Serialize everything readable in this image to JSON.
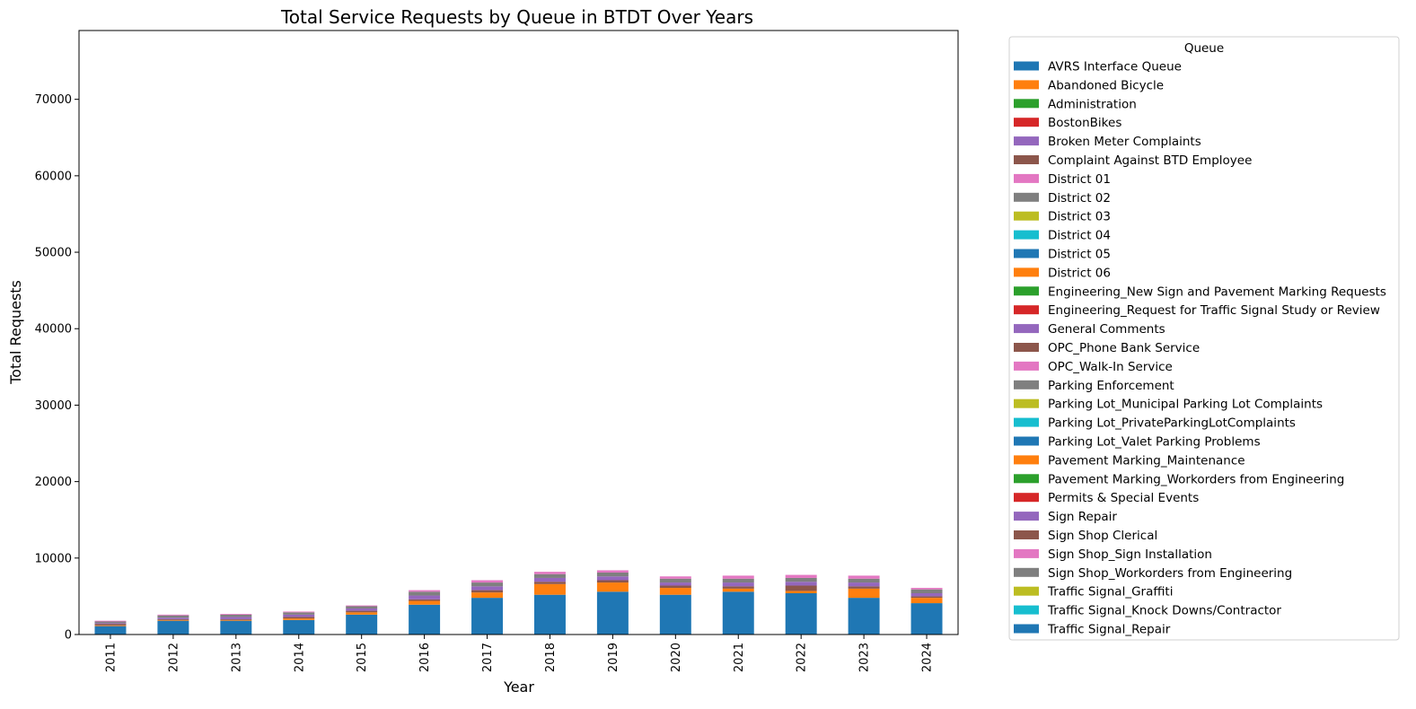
{
  "chart_data": {
    "type": "bar",
    "stacked": true,
    "title": "Total Service Requests by Queue in BTDT Over Years",
    "xlabel": "Year",
    "ylabel": "Total Requests",
    "ylim": [
      0,
      79000
    ],
    "yticks": [
      0,
      10000,
      20000,
      30000,
      40000,
      50000,
      60000,
      70000
    ],
    "legend_title": "Queue",
    "legend_position": "outside-right",
    "categories": [
      "2011",
      "2012",
      "2013",
      "2014",
      "2015",
      "2016",
      "2017",
      "2018",
      "2019",
      "2020",
      "2021",
      "2022",
      "2023",
      "2024"
    ],
    "series": [
      {
        "name": "Traffic Signal_Repair",
        "color": "#1f77b4",
        "values": [
          1100,
          1800,
          1800,
          1900,
          2600,
          3900,
          4800,
          5200,
          5600,
          5200,
          5600,
          5400,
          4800,
          4100
        ]
      },
      {
        "name": "Traffic Signal_Knock Downs/Contractor",
        "color": "#17becf",
        "values": [
          0,
          0,
          0,
          0,
          0,
          0,
          0,
          0,
          0,
          0,
          0,
          0,
          0,
          0
        ]
      },
      {
        "name": "Traffic Signal_Graffiti",
        "color": "#bcbd22",
        "values": [
          0,
          0,
          0,
          0,
          0,
          0,
          0,
          0,
          0,
          0,
          0,
          0,
          0,
          0
        ]
      },
      {
        "name": "Sign Shop_Workorders from Engineering",
        "color": "#7f7f7f",
        "values": [
          0,
          0,
          0,
          0,
          0,
          0,
          0,
          0,
          0,
          0,
          0,
          0,
          0,
          0
        ]
      },
      {
        "name": "Sign Shop_Sign Installation",
        "color": "#e377c2",
        "values": [
          0,
          0,
          0,
          0,
          0,
          0,
          0,
          0,
          0,
          0,
          0,
          0,
          0,
          0
        ]
      },
      {
        "name": "Sign Shop Clerical",
        "color": "#8c564b",
        "values": [
          0,
          0,
          0,
          0,
          0,
          0,
          0,
          0,
          0,
          0,
          0,
          0,
          0,
          0
        ]
      },
      {
        "name": "Sign Repair",
        "color": "#9467bd",
        "values": [
          0,
          0,
          0,
          0,
          0,
          0,
          0,
          0,
          0,
          0,
          0,
          0,
          0,
          0
        ]
      },
      {
        "name": "Permits & Special Events",
        "color": "#d62728",
        "values": [
          0,
          0,
          0,
          0,
          0,
          0,
          0,
          0,
          0,
          0,
          0,
          0,
          0,
          0
        ]
      },
      {
        "name": "Pavement Marking_Workorders from Engineering",
        "color": "#2ca02c",
        "values": [
          0,
          0,
          0,
          0,
          0,
          0,
          0,
          0,
          0,
          0,
          0,
          0,
          0,
          0
        ]
      },
      {
        "name": "Pavement Marking_Maintenance",
        "color": "#ff7f0e",
        "values": [
          100,
          100,
          100,
          200,
          300,
          500,
          700,
          1400,
          1200,
          900,
          400,
          300,
          1200,
          700
        ]
      },
      {
        "name": "Parking Lot_Valet Parking Problems",
        "color": "#1f77b4",
        "values": [
          0,
          0,
          0,
          0,
          0,
          0,
          0,
          0,
          0,
          0,
          0,
          0,
          0,
          0
        ]
      },
      {
        "name": "Parking Lot_PrivateParkingLotComplaints",
        "color": "#17becf",
        "values": [
          0,
          0,
          0,
          0,
          0,
          0,
          0,
          0,
          0,
          0,
          0,
          0,
          0,
          0
        ]
      },
      {
        "name": "Parking Lot_Municipal Parking Lot Complaints",
        "color": "#bcbd22",
        "values": [
          0,
          0,
          0,
          0,
          0,
          0,
          0,
          0,
          0,
          0,
          0,
          0,
          0,
          0
        ]
      },
      {
        "name": "Parking Enforcement",
        "color": "#7f7f7f",
        "values": [
          0,
          0,
          0,
          0,
          0,
          0,
          0,
          0,
          0,
          0,
          0,
          0,
          0,
          0
        ]
      },
      {
        "name": "OPC_Walk-In Service",
        "color": "#e377c2",
        "values": [
          0,
          0,
          0,
          0,
          0,
          0,
          0,
          0,
          0,
          0,
          0,
          0,
          0,
          0
        ]
      },
      {
        "name": "OPC_Phone Bank Service",
        "color": "#8c564b",
        "values": [
          200,
          100,
          100,
          200,
          200,
          200,
          300,
          300,
          300,
          300,
          300,
          700,
          300,
          200
        ]
      },
      {
        "name": "General Comments",
        "color": "#9467bd",
        "values": [
          100,
          200,
          300,
          300,
          300,
          500,
          500,
          500,
          500,
          400,
          500,
          500,
          500,
          400
        ]
      },
      {
        "name": "Engineering_Request for Traffic Signal Study or Review",
        "color": "#d62728",
        "values": [
          0,
          0,
          0,
          0,
          0,
          0,
          0,
          0,
          0,
          0,
          0,
          0,
          0,
          0
        ]
      },
      {
        "name": "Engineering_New Sign and Pavement Marking Requests",
        "color": "#2ca02c",
        "values": [
          0,
          0,
          0,
          0,
          0,
          0,
          0,
          0,
          0,
          0,
          0,
          0,
          0,
          0
        ]
      },
      {
        "name": "District 06",
        "color": "#ff7f0e",
        "values": [
          0,
          0,
          0,
          0,
          0,
          0,
          0,
          0,
          0,
          0,
          0,
          0,
          0,
          0
        ]
      },
      {
        "name": "District 05",
        "color": "#1f77b4",
        "values": [
          0,
          0,
          0,
          0,
          0,
          0,
          0,
          0,
          0,
          0,
          0,
          0,
          0,
          0
        ]
      },
      {
        "name": "District 04",
        "color": "#17becf",
        "values": [
          0,
          0,
          0,
          0,
          0,
          0,
          0,
          0,
          0,
          0,
          0,
          0,
          0,
          0
        ]
      },
      {
        "name": "District 03",
        "color": "#bcbd22",
        "values": [
          0,
          0,
          0,
          0,
          0,
          0,
          0,
          0,
          0,
          0,
          0,
          0,
          0,
          0
        ]
      },
      {
        "name": "District 02",
        "color": "#7f7f7f",
        "values": [
          200,
          300,
          300,
          300,
          300,
          500,
          500,
          500,
          500,
          500,
          500,
          500,
          500,
          500
        ]
      },
      {
        "name": "District 01",
        "color": "#e377c2",
        "values": [
          100,
          100,
          100,
          100,
          100,
          200,
          300,
          300,
          300,
          300,
          400,
          400,
          400,
          200
        ]
      },
      {
        "name": "Complaint Against BTD Employee",
        "color": "#8c564b",
        "values": [
          0,
          0,
          0,
          0,
          0,
          0,
          0,
          0,
          0,
          0,
          0,
          0,
          0,
          0
        ]
      },
      {
        "name": "Broken Meter Complaints",
        "color": "#9467bd",
        "values": [
          0,
          0,
          0,
          0,
          0,
          0,
          0,
          0,
          0,
          0,
          0,
          0,
          0,
          0
        ]
      },
      {
        "name": "BostonBikes",
        "color": "#d62728",
        "values": [
          0,
          0,
          0,
          0,
          0,
          0,
          0,
          0,
          0,
          0,
          0,
          0,
          0,
          0
        ]
      },
      {
        "name": "Administration",
        "color": "#2ca02c",
        "values": [
          0,
          0,
          0,
          0,
          0,
          0,
          0,
          0,
          0,
          0,
          0,
          0,
          0,
          0
        ]
      },
      {
        "name": "Abandoned Bicycle",
        "color": "#ff7f0e",
        "values": [
          0,
          0,
          0,
          0,
          0,
          0,
          0,
          0,
          0,
          0,
          0,
          0,
          0,
          0
        ]
      },
      {
        "name": "AVRS Interface Queue",
        "color": "#1f77b4",
        "values": [
          0,
          0,
          0,
          0,
          0,
          0,
          0,
          0,
          0,
          0,
          0,
          0,
          0,
          0
        ]
      }
    ]
  }
}
